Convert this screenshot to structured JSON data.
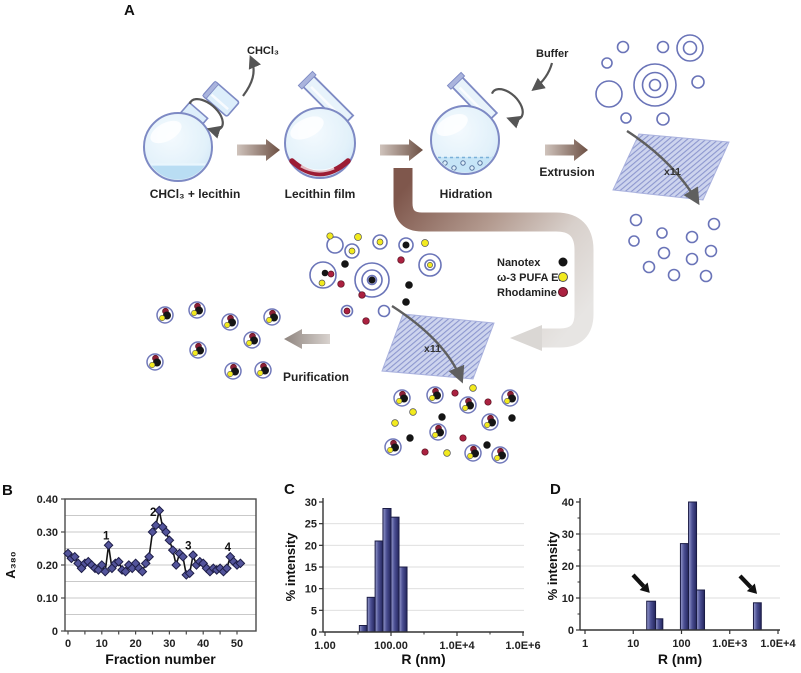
{
  "figure": {
    "panel_labels": {
      "a": "A",
      "b": "B",
      "c": "C",
      "d": "D"
    }
  },
  "diagram": {
    "flask_steps": [
      {
        "label": "CHCl₃ + lecithin"
      },
      {
        "label": "Lecithin film"
      },
      {
        "label": "Hidration"
      }
    ],
    "evaporation_label": "CHCl₃",
    "buffer_label": "Buffer",
    "extrusion_label": "Extrusion",
    "membrane_pass_label": "x11",
    "purification_label": "Purification",
    "legend": {
      "items": [
        {
          "label": "Nanotex",
          "color": "#141414"
        },
        {
          "label": "ω-3 PUFA EE",
          "color": "#f2ea1e"
        },
        {
          "label": "Rhodamine",
          "color": "#ab2140"
        }
      ]
    }
  },
  "chart_data": [
    {
      "id": "fractionation-trace",
      "panel": "B",
      "type": "line",
      "marker": "diamond",
      "xlabel": "Fraction number",
      "ylabel": "A₃₈₀",
      "xlim": [
        0,
        52
      ],
      "ylim": [
        0,
        0.4
      ],
      "x_ticks": [
        0,
        10,
        20,
        30,
        40,
        50
      ],
      "x_minor_step": 5,
      "y_ticks": [
        "0.40",
        "0.30",
        "0.20",
        "0.10",
        "0"
      ],
      "y_tick_values": [
        0.4,
        0.3,
        0.2,
        0.1,
        0
      ],
      "grid_step": 0.05,
      "x": [
        0,
        1,
        2,
        3,
        4,
        5,
        6,
        7,
        8,
        9,
        10,
        11,
        12,
        13,
        14,
        15,
        16,
        17,
        18,
        19,
        20,
        21,
        22,
        23,
        24,
        25,
        26,
        27,
        28,
        29,
        30,
        31,
        32,
        33,
        34,
        35,
        36,
        37,
        38,
        39,
        40,
        41,
        42,
        43,
        44,
        45,
        46,
        47,
        48,
        49,
        50,
        51
      ],
      "values": [
        0.235,
        0.22,
        0.225,
        0.205,
        0.19,
        0.205,
        0.21,
        0.2,
        0.19,
        0.185,
        0.2,
        0.18,
        0.26,
        0.19,
        0.205,
        0.21,
        0.185,
        0.18,
        0.2,
        0.19,
        0.205,
        0.19,
        0.18,
        0.205,
        0.225,
        0.3,
        0.32,
        0.365,
        0.315,
        0.3,
        0.275,
        0.245,
        0.2,
        0.235,
        0.225,
        0.17,
        0.175,
        0.23,
        0.2,
        0.21,
        0.205,
        0.19,
        0.18,
        0.19,
        0.185,
        0.19,
        0.18,
        0.19,
        0.225,
        0.21,
        0.2,
        0.205
      ],
      "annotations": [
        {
          "text": "1",
          "x": 11.3,
          "y": 0.278
        },
        {
          "text": "2",
          "x": 25.2,
          "y": 0.348
        },
        {
          "text": "3",
          "x": 35.6,
          "y": 0.247
        },
        {
          "text": "4",
          "x": 47.3,
          "y": 0.243
        }
      ]
    },
    {
      "id": "dls-before-purification",
      "panel": "C",
      "type": "bar",
      "x_scale": "log",
      "xlabel": "R (nm)",
      "ylabel": "% intensity",
      "xlim": [
        1,
        1000000
      ],
      "ylim": [
        0,
        30
      ],
      "y_tick_step": 5,
      "x_tick_labels": [
        "1.00",
        "100.00",
        "1.0E+4",
        "1.0E+6"
      ],
      "x_tick_values": [
        1,
        100,
        10000,
        1000000
      ],
      "x_minor_values": [
        10,
        1000,
        100000
      ],
      "bars": [
        {
          "from": 11,
          "to": 19,
          "value": 1.5
        },
        {
          "from": 19,
          "to": 33,
          "value": 8
        },
        {
          "from": 33,
          "to": 57,
          "value": 21
        },
        {
          "from": 57,
          "to": 100,
          "value": 28.5
        },
        {
          "from": 100,
          "to": 175,
          "value": 26.5
        },
        {
          "from": 175,
          "to": 306,
          "value": 15
        }
      ]
    },
    {
      "id": "dls-after-purification",
      "panel": "D",
      "type": "bar",
      "x_scale": "log",
      "xlabel": "R (nm)",
      "ylabel": "% intensity",
      "xlim": [
        1,
        10000
      ],
      "ylim": [
        0,
        40
      ],
      "y_tick_step": 10,
      "y_minor_step": 5,
      "x_tick_labels": [
        "1",
        "10",
        "100",
        "1.0E+3",
        "1.0E+4"
      ],
      "x_tick_values": [
        1,
        10,
        100,
        1000,
        10000
      ],
      "x_minor_values": [],
      "bars": [
        {
          "from": 19,
          "to": 29,
          "value": 9
        },
        {
          "from": 29,
          "to": 41,
          "value": 3.5
        },
        {
          "from": 95,
          "to": 140,
          "value": 27
        },
        {
          "from": 140,
          "to": 205,
          "value": 40
        },
        {
          "from": 205,
          "to": 300,
          "value": 12.5
        },
        {
          "from": 3100,
          "to": 4500,
          "value": 8.5
        }
      ],
      "annotations": [
        {
          "type": "arrow",
          "from": [
            9.9,
            17.2
          ],
          "to": [
            22,
            11.6
          ]
        },
        {
          "type": "arrow",
          "from": [
            1630,
            16.9
          ],
          "to": [
            3680,
            11.3
          ]
        }
      ]
    }
  ]
}
